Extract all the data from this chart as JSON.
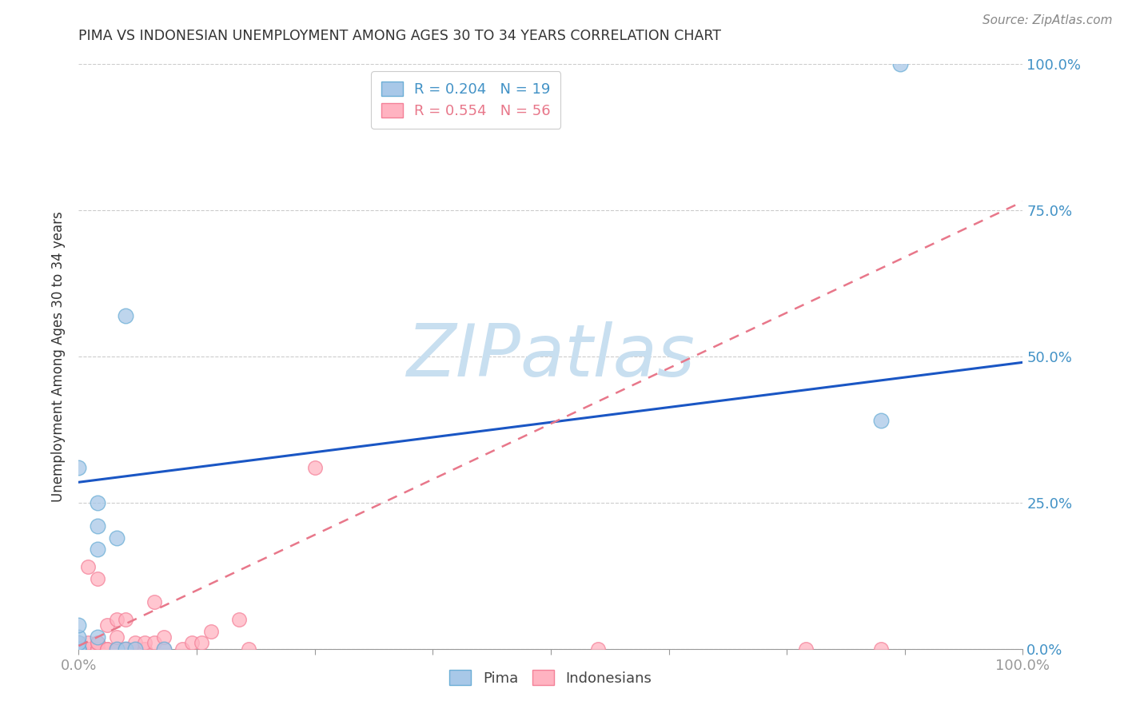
{
  "title": "PIMA VS INDONESIAN UNEMPLOYMENT AMONG AGES 30 TO 34 YEARS CORRELATION CHART",
  "source": "Source: ZipAtlas.com",
  "ylabel": "Unemployment Among Ages 30 to 34 years",
  "xlim": [
    0.0,
    1.0
  ],
  "ylim": [
    0.0,
    1.0
  ],
  "xticks": [
    0.0,
    0.125,
    0.25,
    0.375,
    0.5,
    0.625,
    0.75,
    0.875,
    1.0
  ],
  "yticks": [
    0.0,
    0.25,
    0.5,
    0.75,
    1.0
  ],
  "xticklabels_edge": [
    "0.0%",
    "100.0%"
  ],
  "yticklabels": [
    "0.0%",
    "25.0%",
    "50.0%",
    "75.0%",
    "100.0%"
  ],
  "pima_color": "#a8c8e8",
  "pima_edge_color": "#6baed6",
  "indonesian_color": "#ffb3c1",
  "indonesian_edge_color": "#f48098",
  "pima_R": 0.204,
  "pima_N": 19,
  "indonesian_R": 0.554,
  "indonesian_N": 56,
  "pima_x": [
    0.0,
    0.0,
    0.0,
    0.0,
    0.0,
    0.0,
    0.0,
    0.02,
    0.02,
    0.02,
    0.02,
    0.04,
    0.04,
    0.05,
    0.05,
    0.06,
    0.09,
    0.85,
    0.87
  ],
  "pima_y": [
    0.0,
    0.0,
    0.0,
    0.01,
    0.02,
    0.04,
    0.31,
    0.02,
    0.17,
    0.21,
    0.25,
    0.0,
    0.19,
    0.0,
    0.57,
    0.0,
    0.0,
    0.39,
    1.0
  ],
  "indonesian_x": [
    0.0,
    0.0,
    0.0,
    0.0,
    0.0,
    0.0,
    0.0,
    0.0,
    0.0,
    0.0,
    0.0,
    0.0,
    0.0,
    0.0,
    0.0,
    0.01,
    0.01,
    0.01,
    0.01,
    0.01,
    0.02,
    0.02,
    0.02,
    0.02,
    0.02,
    0.02,
    0.03,
    0.03,
    0.03,
    0.04,
    0.04,
    0.04,
    0.04,
    0.04,
    0.05,
    0.05,
    0.05,
    0.06,
    0.06,
    0.06,
    0.07,
    0.07,
    0.08,
    0.08,
    0.09,
    0.09,
    0.11,
    0.12,
    0.13,
    0.14,
    0.17,
    0.18,
    0.25,
    0.55,
    0.77,
    0.85
  ],
  "indonesian_y": [
    0.0,
    0.0,
    0.0,
    0.0,
    0.0,
    0.0,
    0.0,
    0.0,
    0.0,
    0.0,
    0.0,
    0.0,
    0.0,
    0.0,
    0.01,
    0.0,
    0.0,
    0.0,
    0.01,
    0.14,
    0.0,
    0.0,
    0.0,
    0.01,
    0.01,
    0.12,
    0.0,
    0.0,
    0.04,
    0.0,
    0.0,
    0.0,
    0.02,
    0.05,
    0.0,
    0.0,
    0.05,
    0.0,
    0.0,
    0.01,
    0.0,
    0.01,
    0.01,
    0.08,
    0.0,
    0.02,
    0.0,
    0.01,
    0.01,
    0.03,
    0.05,
    0.0,
    0.31,
    0.0,
    0.0,
    0.0
  ],
  "pima_line_y0": 0.285,
  "pima_line_y1": 0.49,
  "indo_line_y0": 0.005,
  "indo_line_y1": 0.195,
  "indo_line_x0": 0.0,
  "indo_line_x1": 0.25,
  "background_color": "#ffffff",
  "grid_color": "#cccccc",
  "axis_color": "#999999",
  "title_color": "#333333",
  "tick_label_color": "#4292c6",
  "watermark_text": "ZIPatlas",
  "watermark_color": "#c8dff0",
  "legend_blue_color": "#4292c6",
  "legend_pink_color": "#e8778a"
}
